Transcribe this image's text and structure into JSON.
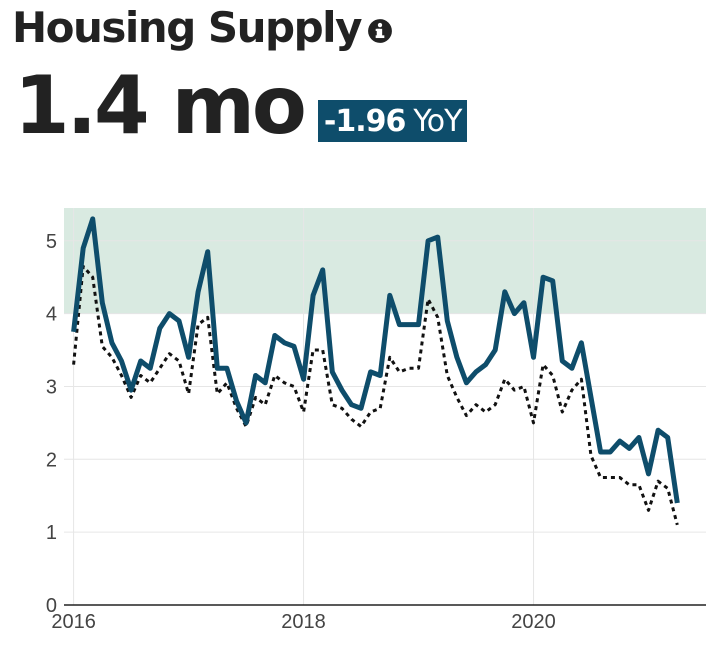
{
  "header": {
    "title": "Housing Supply",
    "value": "1.4 mo",
    "delta_value": "-1.96",
    "delta_unit": "YoY"
  },
  "icons": {
    "info": "info-circle-icon"
  },
  "colors": {
    "primary_line": "#0e4d6b",
    "comparison_line": "#111111",
    "band": "#d9eae1",
    "badge": "#0e4d6b"
  },
  "chart_data": {
    "type": "line",
    "x_start": "2016-01",
    "x_ticks": [
      "2016",
      "2018",
      "2020"
    ],
    "y_ticks": [
      "0",
      "1",
      "2",
      "3",
      "4",
      "5"
    ],
    "ylim": [
      0,
      5.45
    ],
    "xlim": [
      "2015-12",
      "2021-07"
    ],
    "band": {
      "y_from": 4.0,
      "y_to": 5.45
    },
    "grid": true,
    "series": [
      {
        "style": "solid",
        "values": [
          3.75,
          4.9,
          5.3,
          4.15,
          3.6,
          3.35,
          2.95,
          3.35,
          3.25,
          3.8,
          4.0,
          3.9,
          3.4,
          4.3,
          4.85,
          3.25,
          3.25,
          2.8,
          2.5,
          3.15,
          3.05,
          3.7,
          3.6,
          3.55,
          3.1,
          4.25,
          4.6,
          3.2,
          2.95,
          2.75,
          2.7,
          3.2,
          3.15,
          4.25,
          3.85,
          3.85,
          3.85,
          5.0,
          5.05,
          3.9,
          3.4,
          3.05,
          3.2,
          3.3,
          3.5,
          4.3,
          4.0,
          4.15,
          3.4,
          4.5,
          4.45,
          3.35,
          3.25,
          3.6,
          2.85,
          2.1,
          2.1,
          2.25,
          2.15,
          2.3,
          1.8,
          2.4,
          2.3,
          1.4
        ]
      },
      {
        "style": "dotted",
        "values": [
          3.3,
          4.65,
          4.5,
          3.55,
          3.4,
          3.15,
          2.85,
          3.15,
          3.05,
          3.25,
          3.45,
          3.35,
          2.9,
          3.85,
          3.95,
          2.9,
          3.05,
          2.7,
          2.45,
          2.85,
          2.75,
          3.15,
          3.05,
          3.0,
          2.65,
          3.5,
          3.5,
          2.75,
          2.7,
          2.55,
          2.45,
          2.65,
          2.7,
          3.4,
          3.2,
          3.25,
          3.25,
          4.2,
          3.95,
          3.15,
          2.85,
          2.6,
          2.75,
          2.65,
          2.75,
          3.1,
          2.95,
          3.0,
          2.5,
          3.3,
          3.15,
          2.65,
          2.95,
          3.1,
          2.05,
          1.75,
          1.75,
          1.75,
          1.65,
          1.65,
          1.3,
          1.7,
          1.6,
          1.1
        ]
      }
    ]
  }
}
